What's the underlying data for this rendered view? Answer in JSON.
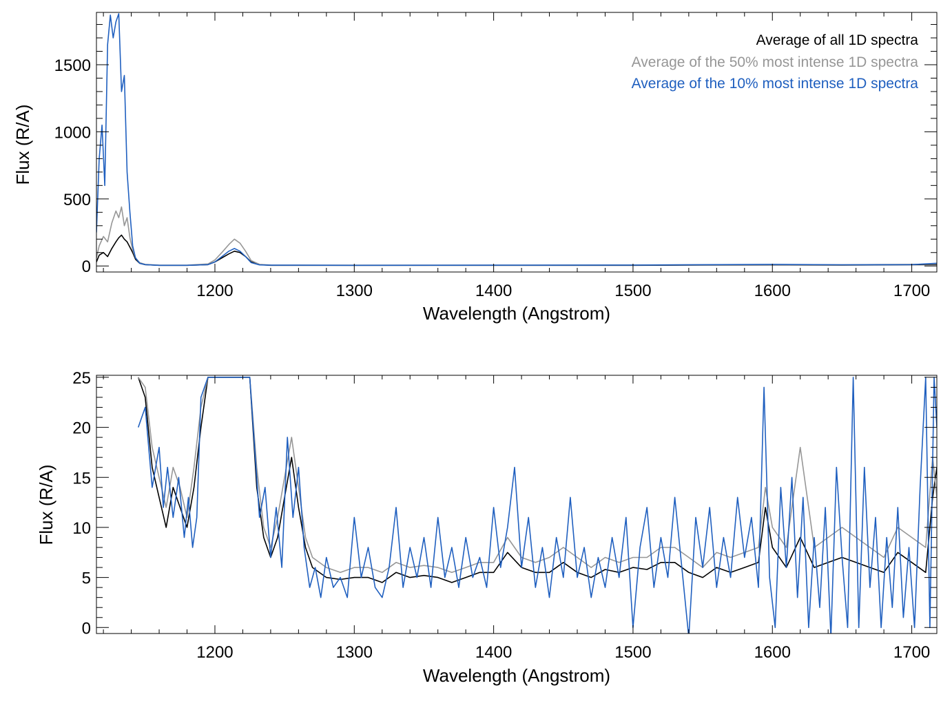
{
  "chart_data": [
    {
      "type": "line",
      "panel": "top",
      "xlabel": "Wavelength (Angstrom)",
      "ylabel": "Flux (R/A)",
      "xlim": [
        1115,
        1718
      ],
      "ylim": [
        -45,
        1890
      ],
      "xticks": [
        1200,
        1300,
        1400,
        1500,
        1600,
        1700
      ],
      "yticks": [
        0,
        500,
        1000,
        1500
      ],
      "legend_position": "top-right",
      "legend": [
        "Average of all 1D spectra",
        "Average of the 50% most intense 1D spectra",
        "Average of the 10% most intense 1D spectra"
      ],
      "series": [
        {
          "name": "Average of all 1D spectra",
          "color": "#000000",
          "x": [
            1115,
            1117,
            1120,
            1123,
            1126,
            1129,
            1131,
            1133,
            1135,
            1137,
            1139,
            1141,
            1143,
            1146,
            1150,
            1160,
            1180,
            1195,
            1200,
            1205,
            1210,
            1214,
            1218,
            1222,
            1226,
            1232,
            1240,
            1260,
            1300,
            1400,
            1500,
            1600,
            1650,
            1700,
            1718
          ],
          "y": [
            30,
            80,
            100,
            70,
            130,
            180,
            210,
            230,
            200,
            180,
            140,
            100,
            50,
            20,
            10,
            5,
            5,
            10,
            30,
            60,
            90,
            110,
            100,
            70,
            30,
            10,
            5,
            5,
            5,
            5,
            5,
            8,
            7,
            9,
            10
          ]
        },
        {
          "name": "Average of the 50% most intense 1D spectra",
          "color": "#969696",
          "x": [
            1115,
            1117,
            1120,
            1123,
            1126,
            1129,
            1131,
            1133,
            1135,
            1137,
            1139,
            1141,
            1143,
            1146,
            1150,
            1160,
            1180,
            1195,
            1200,
            1205,
            1210,
            1214,
            1218,
            1222,
            1226,
            1232,
            1240,
            1260,
            1300,
            1400,
            1500,
            1600,
            1650,
            1700,
            1718
          ],
          "y": [
            60,
            150,
            220,
            180,
            320,
            410,
            360,
            440,
            300,
            360,
            210,
            120,
            60,
            25,
            12,
            6,
            6,
            15,
            45,
            100,
            160,
            200,
            170,
            110,
            40,
            12,
            7,
            6,
            6,
            6,
            7,
            10,
            9,
            12,
            14
          ]
        },
        {
          "name": "Average of the 10% most intense 1D spectra",
          "color": "#1f5fbf",
          "x": [
            1115,
            1117,
            1119,
            1121,
            1123,
            1125,
            1127,
            1129,
            1131,
            1133,
            1135,
            1137,
            1139,
            1141,
            1143,
            1146,
            1150,
            1160,
            1180,
            1195,
            1200,
            1205,
            1210,
            1214,
            1218,
            1222,
            1226,
            1232,
            1240,
            1260,
            1300,
            1400,
            1500,
            1600,
            1650,
            1700,
            1718
          ],
          "y": [
            250,
            800,
            1050,
            600,
            1650,
            1870,
            1700,
            1820,
            1880,
            1300,
            1420,
            700,
            400,
            150,
            60,
            20,
            10,
            5,
            5,
            10,
            30,
            70,
            110,
            130,
            110,
            70,
            25,
            8,
            6,
            6,
            5,
            6,
            7,
            12,
            9,
            10,
            20
          ]
        }
      ]
    },
    {
      "type": "line",
      "panel": "bottom",
      "xlabel": "Wavelength (Angstrom)",
      "ylabel": "Flux (R/A)",
      "xlim": [
        1115,
        1718
      ],
      "ylim": [
        -0.6,
        25.2
      ],
      "xticks": [
        1200,
        1300,
        1400,
        1500,
        1600,
        1700
      ],
      "yticks": [
        0,
        5,
        10,
        15,
        20,
        25
      ],
      "series": [
        {
          "name": "Average of all 1D spectra",
          "color": "#000000",
          "x": [
            1145,
            1150,
            1155,
            1160,
            1165,
            1170,
            1175,
            1180,
            1185,
            1190,
            1195,
            1200,
            1225,
            1230,
            1235,
            1240,
            1245,
            1250,
            1255,
            1260,
            1265,
            1270,
            1280,
            1290,
            1300,
            1310,
            1320,
            1330,
            1340,
            1350,
            1360,
            1370,
            1380,
            1390,
            1400,
            1410,
            1420,
            1430,
            1440,
            1450,
            1460,
            1470,
            1480,
            1490,
            1500,
            1510,
            1520,
            1530,
            1540,
            1550,
            1560,
            1570,
            1580,
            1590,
            1595,
            1600,
            1610,
            1620,
            1630,
            1640,
            1650,
            1660,
            1670,
            1680,
            1690,
            1700,
            1710,
            1715,
            1718
          ],
          "y": [
            25,
            23,
            16,
            13,
            10,
            14,
            12,
            10,
            14,
            20,
            25,
            25,
            25,
            14,
            9,
            7,
            9,
            13,
            17,
            12,
            8,
            6,
            5,
            4.8,
            5,
            5,
            4.5,
            5.5,
            5,
            5.2,
            5,
            4.5,
            5,
            5.5,
            5.5,
            7.5,
            6,
            5.5,
            5.5,
            6.5,
            5.5,
            5,
            5.8,
            5.5,
            6,
            5.8,
            6.5,
            6.5,
            5.5,
            5,
            6,
            5.5,
            6,
            6.5,
            12,
            8,
            6,
            9,
            6,
            6.5,
            7,
            6.5,
            6,
            5.5,
            7.5,
            6.5,
            5.5,
            13,
            16
          ]
        },
        {
          "name": "Average of the 50% most intense 1D spectra",
          "color": "#969696",
          "x": [
            1145,
            1150,
            1155,
            1160,
            1165,
            1170,
            1175,
            1180,
            1185,
            1190,
            1195,
            1200,
            1225,
            1230,
            1235,
            1240,
            1245,
            1250,
            1255,
            1260,
            1265,
            1270,
            1280,
            1290,
            1300,
            1310,
            1320,
            1330,
            1340,
            1350,
            1360,
            1370,
            1380,
            1390,
            1400,
            1410,
            1420,
            1430,
            1440,
            1450,
            1460,
            1470,
            1480,
            1490,
            1500,
            1510,
            1520,
            1530,
            1540,
            1550,
            1560,
            1570,
            1580,
            1590,
            1595,
            1600,
            1610,
            1620,
            1630,
            1640,
            1650,
            1660,
            1670,
            1680,
            1690,
            1700,
            1710,
            1715,
            1718
          ],
          "y": [
            25,
            24,
            18,
            15,
            12,
            16,
            14,
            11,
            16,
            22,
            25,
            25,
            25,
            16,
            10,
            8,
            11,
            15,
            19,
            14,
            9,
            7,
            6,
            5.5,
            6,
            6,
            5.5,
            6.5,
            6,
            6.2,
            6,
            5.5,
            6,
            6.5,
            6.5,
            9,
            7,
            6.5,
            7,
            8,
            7,
            6,
            7,
            6.5,
            7,
            7,
            8,
            8,
            7,
            6,
            7.5,
            7,
            7.5,
            8,
            14,
            10,
            8,
            18,
            8,
            9,
            10,
            9,
            8,
            7,
            10,
            9,
            8,
            17,
            13
          ]
        },
        {
          "name": "Average of the 10% most intense 1D spectra",
          "color": "#1f5fbf",
          "x": [
            1145,
            1150,
            1155,
            1160,
            1163,
            1166,
            1170,
            1174,
            1178,
            1181,
            1184,
            1187,
            1190,
            1195,
            1200,
            1225,
            1228,
            1232,
            1236,
            1240,
            1244,
            1248,
            1252,
            1256,
            1260,
            1264,
            1268,
            1272,
            1276,
            1280,
            1285,
            1290,
            1295,
            1300,
            1305,
            1310,
            1315,
            1320,
            1325,
            1330,
            1335,
            1340,
            1345,
            1350,
            1355,
            1360,
            1365,
            1370,
            1375,
            1380,
            1385,
            1390,
            1395,
            1400,
            1405,
            1410,
            1415,
            1420,
            1425,
            1430,
            1435,
            1440,
            1445,
            1450,
            1455,
            1460,
            1465,
            1470,
            1475,
            1480,
            1485,
            1490,
            1495,
            1500,
            1505,
            1510,
            1515,
            1520,
            1525,
            1530,
            1535,
            1540,
            1545,
            1550,
            1555,
            1560,
            1565,
            1570,
            1575,
            1580,
            1585,
            1590,
            1594,
            1598,
            1602,
            1606,
            1610,
            1614,
            1618,
            1622,
            1626,
            1630,
            1634,
            1638,
            1642,
            1646,
            1650,
            1654,
            1658,
            1662,
            1666,
            1670,
            1674,
            1678,
            1682,
            1686,
            1690,
            1694,
            1698,
            1702,
            1706,
            1710,
            1713,
            1716,
            1718
          ],
          "y": [
            20,
            22,
            14,
            18,
            12,
            16,
            11,
            15,
            9,
            13,
            8,
            11,
            23,
            25,
            25,
            25,
            19,
            11,
            14,
            7,
            12,
            6,
            19,
            11,
            16,
            8,
            4,
            6,
            3,
            7,
            4,
            5,
            3,
            11,
            5,
            8,
            4,
            3,
            6,
            12,
            4,
            8,
            5,
            9,
            4,
            11,
            5,
            8,
            4,
            9,
            5,
            7,
            4,
            12,
            6,
            10,
            16,
            6,
            11,
            4,
            8,
            3,
            9,
            5,
            13,
            5,
            8,
            3,
            7,
            4,
            9,
            5,
            11,
            0,
            8,
            12,
            4,
            9,
            5,
            13,
            6,
            -1,
            11,
            6,
            12,
            4,
            9,
            5,
            13,
            7,
            11,
            4,
            24,
            5,
            0,
            14,
            6,
            15,
            3,
            13,
            0,
            9,
            2,
            12,
            -1,
            16,
            7,
            0,
            25,
            0,
            16,
            4,
            11,
            0,
            9,
            2,
            12,
            1,
            8,
            0,
            14,
            25,
            0,
            25,
            20
          ]
        }
      ]
    }
  ]
}
